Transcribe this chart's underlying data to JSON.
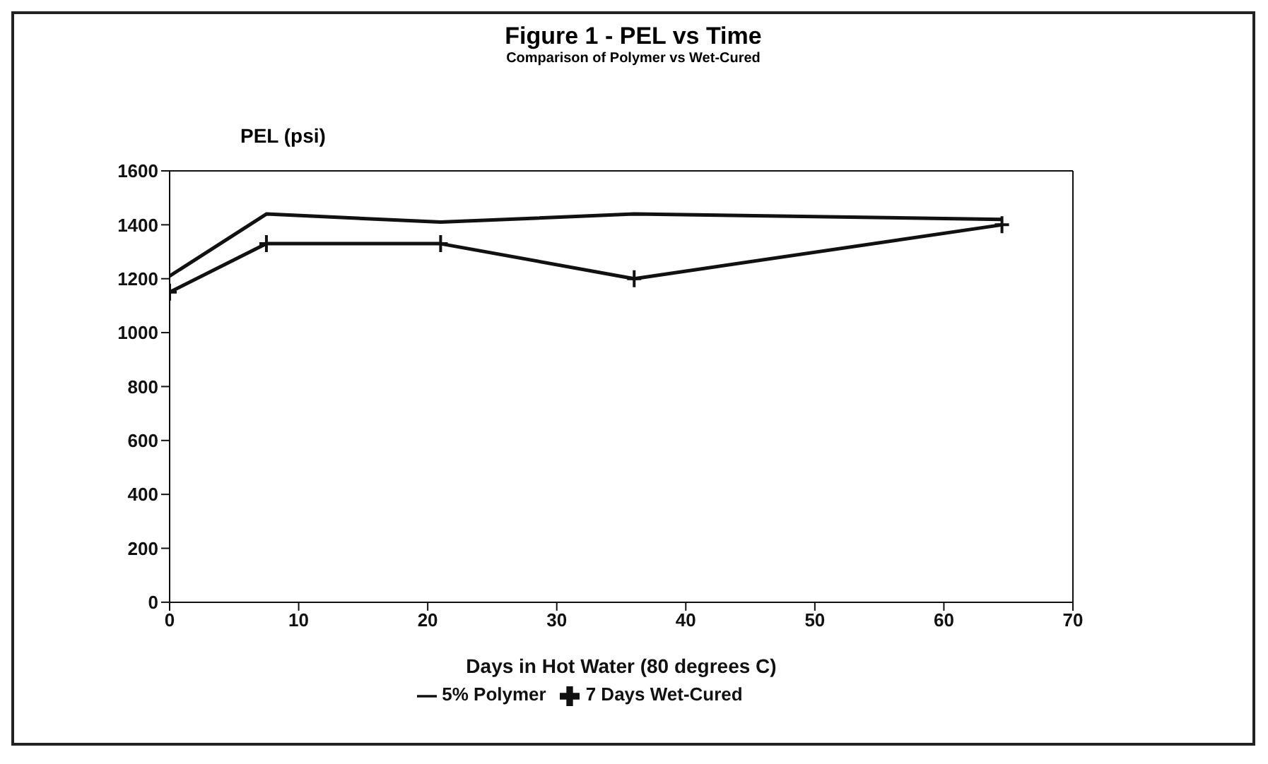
{
  "chart_data": {
    "type": "line",
    "title": "Figure 1 - PEL vs Time",
    "subtitle": "Comparison of Polymer vs Wet-Cured",
    "xlabel": "Days in Hot Water (80 degrees C)",
    "ylabel": "PEL (psi)",
    "x": [
      0,
      7.5,
      21,
      36,
      64.5
    ],
    "series": [
      {
        "name": "5% Polymer",
        "color": "#111111",
        "marker": "none",
        "values": [
          1210,
          1440,
          1410,
          1440,
          1420
        ]
      },
      {
        "name": "7 Days Wet-Cured",
        "color": "#111111",
        "marker": "cross",
        "values": [
          1150,
          1330,
          1330,
          1200,
          1400
        ]
      }
    ],
    "xlim": [
      0,
      70
    ],
    "xticks": [
      0,
      10,
      20,
      30,
      40,
      50,
      60,
      70
    ],
    "ylim": [
      0,
      1600
    ],
    "yticks": [
      0,
      200,
      400,
      600,
      800,
      1000,
      1200,
      1400,
      1600
    ],
    "grid": false,
    "legend": "bottom",
    "line_style": "solid"
  }
}
